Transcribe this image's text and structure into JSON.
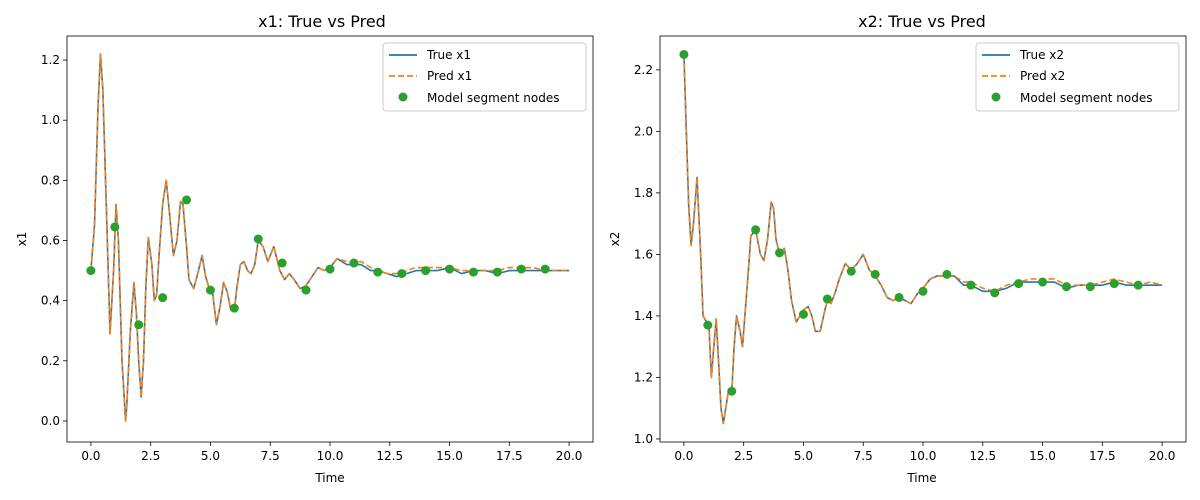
{
  "colors": {
    "true": "#1f77b4",
    "pred": "#ff7f0e",
    "nodes": "#2ca02c"
  },
  "chart_data": [
    {
      "type": "line",
      "title": "x1: True vs Pred",
      "xlabel": "Time",
      "ylabel": "x1",
      "xlim": [
        -1.0,
        21.0
      ],
      "ylim": [
        -0.07,
        1.28
      ],
      "xticks": [
        0.0,
        2.5,
        5.0,
        7.5,
        10.0,
        12.5,
        15.0,
        17.5,
        20.0
      ],
      "xtick_labels": [
        "0.0",
        "2.5",
        "5.0",
        "7.5",
        "10.0",
        "12.5",
        "15.0",
        "17.5",
        "20.0"
      ],
      "yticks": [
        0.0,
        0.2,
        0.4,
        0.6,
        0.8,
        1.0,
        1.2
      ],
      "ytick_labels": [
        "0.0",
        "0.2",
        "0.4",
        "0.6",
        "0.8",
        "1.0",
        "1.2"
      ],
      "legend": {
        "placement": "top-right",
        "entries": [
          "True x1",
          "Pred x1",
          "Model segment nodes"
        ]
      },
      "grid": false,
      "series": [
        {
          "name": "True x1",
          "style": "solid",
          "x": [
            0.0,
            0.15,
            0.3,
            0.4,
            0.5,
            0.65,
            0.8,
            0.95,
            1.05,
            1.15,
            1.3,
            1.45,
            1.5,
            1.65,
            1.8,
            1.9,
            2.0,
            2.1,
            2.2,
            2.3,
            2.4,
            2.55,
            2.65,
            2.75,
            2.85,
            3.0,
            3.15,
            3.3,
            3.45,
            3.6,
            3.75,
            3.85,
            4.0,
            4.1,
            4.3,
            4.5,
            4.65,
            4.8,
            4.95,
            5.0,
            5.1,
            5.25,
            5.4,
            5.55,
            5.7,
            5.85,
            6.0,
            6.1,
            6.25,
            6.4,
            6.55,
            6.7,
            6.85,
            7.0,
            7.2,
            7.4,
            7.65,
            7.9,
            8.1,
            8.3,
            8.5,
            8.75,
            9.0,
            9.25,
            9.5,
            9.75,
            10.0,
            10.3,
            10.7,
            11.0,
            11.3,
            11.7,
            12.0,
            12.4,
            12.8,
            13.2,
            13.6,
            14.0,
            14.5,
            15.0,
            15.5,
            16.0,
            16.5,
            17.0,
            17.5,
            18.0,
            18.5,
            19.0,
            19.5,
            20.0
          ],
          "y": [
            0.5,
            0.65,
            1.05,
            1.22,
            1.1,
            0.7,
            0.29,
            0.5,
            0.72,
            0.6,
            0.2,
            0.0,
            0.05,
            0.3,
            0.46,
            0.36,
            0.2,
            0.08,
            0.2,
            0.45,
            0.61,
            0.52,
            0.4,
            0.42,
            0.55,
            0.72,
            0.8,
            0.68,
            0.55,
            0.6,
            0.73,
            0.72,
            0.58,
            0.47,
            0.44,
            0.5,
            0.55,
            0.48,
            0.44,
            0.44,
            0.42,
            0.32,
            0.38,
            0.46,
            0.43,
            0.37,
            0.37,
            0.44,
            0.52,
            0.53,
            0.5,
            0.49,
            0.52,
            0.6,
            0.58,
            0.53,
            0.58,
            0.5,
            0.47,
            0.49,
            0.47,
            0.44,
            0.45,
            0.48,
            0.51,
            0.5,
            0.51,
            0.54,
            0.52,
            0.52,
            0.52,
            0.5,
            0.5,
            0.49,
            0.48,
            0.49,
            0.5,
            0.5,
            0.5,
            0.51,
            0.49,
            0.5,
            0.5,
            0.49,
            0.5,
            0.5,
            0.5,
            0.5,
            0.5,
            0.5
          ]
        },
        {
          "name": "Pred x1",
          "style": "dashed",
          "x": [
            0.0,
            0.15,
            0.3,
            0.4,
            0.5,
            0.65,
            0.8,
            0.95,
            1.05,
            1.15,
            1.3,
            1.45,
            1.5,
            1.65,
            1.8,
            1.9,
            2.0,
            2.1,
            2.2,
            2.3,
            2.4,
            2.55,
            2.65,
            2.75,
            2.85,
            3.0,
            3.15,
            3.3,
            3.45,
            3.6,
            3.75,
            3.85,
            4.0,
            4.1,
            4.3,
            4.5,
            4.65,
            4.8,
            4.95,
            5.0,
            5.1,
            5.25,
            5.4,
            5.55,
            5.7,
            5.85,
            6.0,
            6.1,
            6.25,
            6.4,
            6.55,
            6.7,
            6.85,
            7.0,
            7.2,
            7.4,
            7.65,
            7.9,
            8.1,
            8.3,
            8.5,
            8.75,
            9.0,
            9.25,
            9.5,
            9.75,
            10.0,
            10.3,
            10.7,
            11.0,
            11.3,
            11.7,
            12.0,
            12.4,
            12.8,
            13.2,
            13.6,
            14.0,
            14.5,
            15.0,
            15.5,
            16.0,
            16.5,
            17.0,
            17.5,
            18.0,
            18.5,
            19.0,
            19.5,
            20.0
          ],
          "y": [
            0.5,
            0.65,
            1.05,
            1.22,
            1.1,
            0.7,
            0.29,
            0.5,
            0.72,
            0.6,
            0.2,
            0.0,
            0.05,
            0.3,
            0.46,
            0.36,
            0.2,
            0.08,
            0.2,
            0.45,
            0.61,
            0.52,
            0.4,
            0.42,
            0.55,
            0.72,
            0.8,
            0.68,
            0.55,
            0.6,
            0.73,
            0.72,
            0.58,
            0.47,
            0.44,
            0.5,
            0.55,
            0.48,
            0.44,
            0.44,
            0.42,
            0.32,
            0.38,
            0.46,
            0.43,
            0.37,
            0.37,
            0.44,
            0.52,
            0.53,
            0.5,
            0.49,
            0.52,
            0.6,
            0.58,
            0.53,
            0.58,
            0.5,
            0.47,
            0.49,
            0.47,
            0.44,
            0.45,
            0.48,
            0.51,
            0.5,
            0.51,
            0.54,
            0.53,
            0.53,
            0.53,
            0.51,
            0.5,
            0.49,
            0.49,
            0.5,
            0.51,
            0.51,
            0.51,
            0.51,
            0.5,
            0.5,
            0.5,
            0.5,
            0.51,
            0.51,
            0.51,
            0.5,
            0.5,
            0.5
          ]
        }
      ],
      "nodes": {
        "name": "Model segment nodes",
        "x": [
          0,
          1,
          2,
          3,
          4,
          5,
          6,
          7,
          8,
          9,
          10,
          11,
          12,
          13,
          14,
          15,
          16,
          17,
          18,
          19
        ],
        "y": [
          0.5,
          0.645,
          0.32,
          0.41,
          0.735,
          0.435,
          0.375,
          0.605,
          0.525,
          0.435,
          0.505,
          0.525,
          0.495,
          0.49,
          0.5,
          0.505,
          0.495,
          0.495,
          0.505,
          0.505
        ]
      }
    },
    {
      "type": "line",
      "title": "x2: True vs Pred",
      "xlabel": "Time",
      "ylabel": "x2",
      "xlim": [
        -1.0,
        21.0
      ],
      "ylim": [
        0.99,
        2.31
      ],
      "xticks": [
        0.0,
        2.5,
        5.0,
        7.5,
        10.0,
        12.5,
        15.0,
        17.5,
        20.0
      ],
      "xtick_labels": [
        "0.0",
        "2.5",
        "5.0",
        "7.5",
        "10.0",
        "12.5",
        "15.0",
        "17.5",
        "20.0"
      ],
      "yticks": [
        1.0,
        1.2,
        1.4,
        1.6,
        1.8,
        2.0,
        2.2
      ],
      "ytick_labels": [
        "1.0",
        "1.2",
        "1.4",
        "1.6",
        "1.8",
        "2.0",
        "2.2"
      ],
      "legend": {
        "placement": "top-right",
        "entries": [
          "True x2",
          "Pred x2",
          "Model segment nodes"
        ]
      },
      "grid": false,
      "series": [
        {
          "name": "True x2",
          "style": "solid",
          "x": [
            0.0,
            0.1,
            0.2,
            0.3,
            0.4,
            0.55,
            0.7,
            0.8,
            0.95,
            1.05,
            1.15,
            1.25,
            1.35,
            1.45,
            1.55,
            1.65,
            1.75,
            1.85,
            2.0,
            2.1,
            2.2,
            2.35,
            2.45,
            2.55,
            2.7,
            2.8,
            3.0,
            3.2,
            3.35,
            3.5,
            3.65,
            3.75,
            3.85,
            4.0,
            4.2,
            4.35,
            4.5,
            4.7,
            4.85,
            5.0,
            5.2,
            5.35,
            5.5,
            5.7,
            5.9,
            6.0,
            6.15,
            6.3,
            6.5,
            6.75,
            7.0,
            7.25,
            7.5,
            7.75,
            8.0,
            8.25,
            8.5,
            8.75,
            9.0,
            9.25,
            9.5,
            9.75,
            10.0,
            10.3,
            10.6,
            11.0,
            11.3,
            11.7,
            12.0,
            12.5,
            13.0,
            13.5,
            14.0,
            14.5,
            15.0,
            15.5,
            16.0,
            16.5,
            17.0,
            17.5,
            18.0,
            18.5,
            19.0,
            19.5,
            20.0
          ],
          "y": [
            2.25,
            2.0,
            1.76,
            1.63,
            1.7,
            1.85,
            1.6,
            1.4,
            1.38,
            1.36,
            1.2,
            1.3,
            1.39,
            1.25,
            1.1,
            1.05,
            1.1,
            1.15,
            1.15,
            1.3,
            1.4,
            1.35,
            1.3,
            1.4,
            1.55,
            1.66,
            1.68,
            1.6,
            1.58,
            1.65,
            1.77,
            1.75,
            1.65,
            1.6,
            1.62,
            1.55,
            1.45,
            1.38,
            1.4,
            1.42,
            1.43,
            1.4,
            1.35,
            1.35,
            1.42,
            1.45,
            1.44,
            1.47,
            1.52,
            1.57,
            1.55,
            1.57,
            1.6,
            1.55,
            1.53,
            1.5,
            1.46,
            1.45,
            1.46,
            1.45,
            1.44,
            1.47,
            1.49,
            1.52,
            1.53,
            1.53,
            1.53,
            1.5,
            1.5,
            1.48,
            1.48,
            1.49,
            1.51,
            1.51,
            1.51,
            1.51,
            1.49,
            1.5,
            1.5,
            1.5,
            1.51,
            1.5,
            1.5,
            1.5,
            1.5
          ]
        },
        {
          "name": "Pred x2",
          "style": "dashed",
          "x": [
            0.0,
            0.1,
            0.2,
            0.3,
            0.4,
            0.55,
            0.7,
            0.8,
            0.95,
            1.05,
            1.15,
            1.25,
            1.35,
            1.45,
            1.55,
            1.65,
            1.75,
            1.85,
            2.0,
            2.1,
            2.2,
            2.35,
            2.45,
            2.55,
            2.7,
            2.8,
            3.0,
            3.2,
            3.35,
            3.5,
            3.65,
            3.75,
            3.85,
            4.0,
            4.2,
            4.35,
            4.5,
            4.7,
            4.85,
            5.0,
            5.2,
            5.35,
            5.5,
            5.7,
            5.9,
            6.0,
            6.15,
            6.3,
            6.5,
            6.75,
            7.0,
            7.25,
            7.5,
            7.75,
            8.0,
            8.25,
            8.5,
            8.75,
            9.0,
            9.25,
            9.5,
            9.75,
            10.0,
            10.3,
            10.6,
            11.0,
            11.3,
            11.7,
            12.0,
            12.5,
            13.0,
            13.5,
            14.0,
            14.5,
            15.0,
            15.5,
            16.0,
            16.5,
            17.0,
            17.5,
            18.0,
            18.5,
            19.0,
            19.5,
            20.0
          ],
          "y": [
            2.25,
            2.0,
            1.76,
            1.63,
            1.7,
            1.85,
            1.6,
            1.4,
            1.38,
            1.36,
            1.2,
            1.3,
            1.39,
            1.25,
            1.1,
            1.05,
            1.1,
            1.15,
            1.15,
            1.3,
            1.4,
            1.35,
            1.3,
            1.4,
            1.55,
            1.66,
            1.68,
            1.6,
            1.58,
            1.65,
            1.77,
            1.75,
            1.65,
            1.6,
            1.62,
            1.55,
            1.45,
            1.38,
            1.4,
            1.42,
            1.43,
            1.4,
            1.35,
            1.35,
            1.42,
            1.45,
            1.44,
            1.47,
            1.52,
            1.57,
            1.55,
            1.57,
            1.6,
            1.55,
            1.53,
            1.5,
            1.46,
            1.45,
            1.46,
            1.45,
            1.44,
            1.47,
            1.49,
            1.52,
            1.53,
            1.53,
            1.53,
            1.51,
            1.51,
            1.49,
            1.48,
            1.5,
            1.51,
            1.52,
            1.52,
            1.52,
            1.5,
            1.5,
            1.5,
            1.51,
            1.52,
            1.51,
            1.5,
            1.51,
            1.5
          ]
        }
      ],
      "nodes": {
        "name": "Model segment nodes",
        "x": [
          0,
          1,
          2,
          3,
          4,
          5,
          6,
          7,
          8,
          9,
          10,
          11,
          12,
          13,
          14,
          15,
          16,
          17,
          18,
          19
        ],
        "y": [
          2.25,
          1.37,
          1.155,
          1.68,
          1.605,
          1.405,
          1.455,
          1.545,
          1.535,
          1.46,
          1.48,
          1.535,
          1.5,
          1.475,
          1.505,
          1.51,
          1.495,
          1.495,
          1.505,
          1.5
        ]
      }
    }
  ]
}
